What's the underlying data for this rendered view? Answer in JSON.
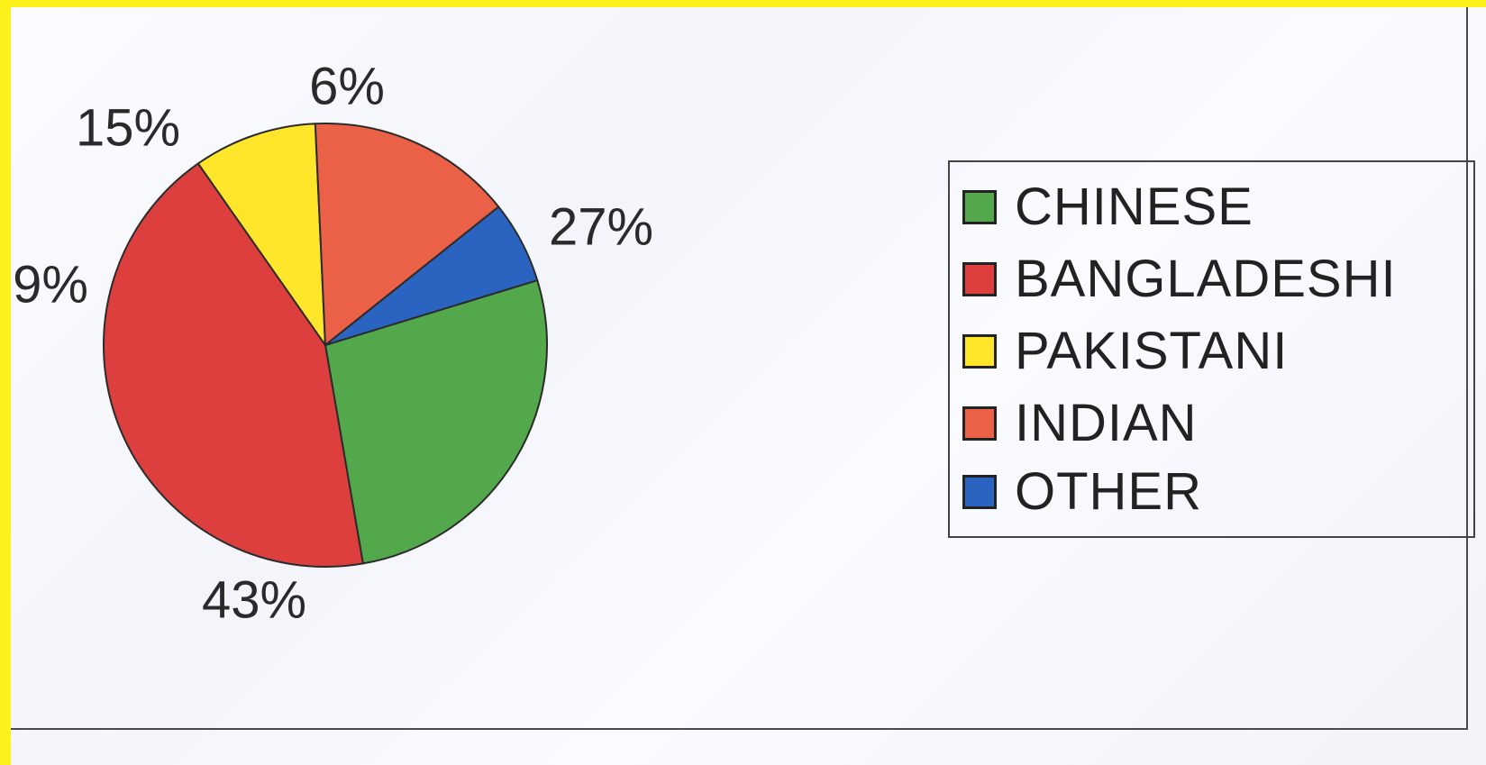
{
  "chart_data": {
    "type": "pie",
    "slices": [
      {
        "name": "CHINESE",
        "value": 27,
        "label": "27%",
        "color": "#52a84a"
      },
      {
        "name": "BANGLADESHI",
        "value": 43,
        "label": "43%",
        "color": "#dd3f3f"
      },
      {
        "name": "PAKISTANI",
        "value": 9,
        "label": "9%",
        "color": "#ffe62a"
      },
      {
        "name": "INDIAN",
        "value": 15,
        "label": "15%",
        "color": "#ea6148"
      },
      {
        "name": "OTHER",
        "value": 6,
        "label": "6%",
        "color": "#2a64c0"
      }
    ],
    "legend": {
      "placement": "right",
      "entries": [
        "CHINESE",
        "BANGLADESHI",
        "PAKISTANI",
        "INDIAN",
        "OTHER"
      ]
    }
  }
}
